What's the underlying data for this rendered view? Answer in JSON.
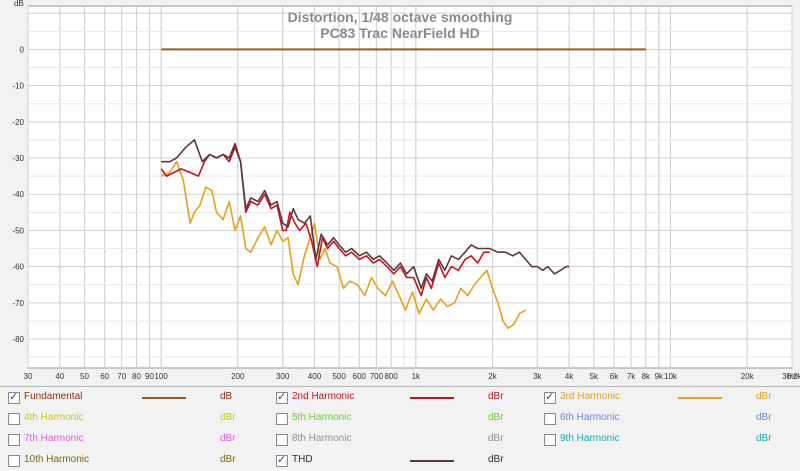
{
  "chart_data": {
    "type": "line",
    "title": "Distortion, 1/48 octave smoothing",
    "subtitle": "PC83 Trac NearField HD",
    "ylabel": "dB",
    "xunit_label": "Hz",
    "x_scale": "log",
    "xlim": [
      30,
      30000
    ],
    "ylim": [
      -88,
      12
    ],
    "grid": true,
    "y_ticks": [
      0,
      -10,
      -20,
      -30,
      -40,
      -50,
      -60,
      -70,
      -80
    ],
    "x_ticks": [
      {
        "v": 30,
        "label": "30"
      },
      {
        "v": 40,
        "label": "40"
      },
      {
        "v": 50,
        "label": "50"
      },
      {
        "v": 60,
        "label": "60"
      },
      {
        "v": 70,
        "label": "70"
      },
      {
        "v": 80,
        "label": "80"
      },
      {
        "v": 90,
        "label": "90"
      },
      {
        "v": 100,
        "label": "100"
      },
      {
        "v": 200,
        "label": "200"
      },
      {
        "v": 300,
        "label": "300"
      },
      {
        "v": 400,
        "label": "400"
      },
      {
        "v": 500,
        "label": "500"
      },
      {
        "v": 600,
        "label": "600"
      },
      {
        "v": 700,
        "label": "700"
      },
      {
        "v": 800,
        "label": "800"
      },
      {
        "v": 1000,
        "label": "1k"
      },
      {
        "v": 2000,
        "label": "2k"
      },
      {
        "v": 3000,
        "label": "3k"
      },
      {
        "v": 4000,
        "label": "4k"
      },
      {
        "v": 5000,
        "label": "5k"
      },
      {
        "v": 6000,
        "label": "6k"
      },
      {
        "v": 7000,
        "label": "7k"
      },
      {
        "v": 8000,
        "label": "8k"
      },
      {
        "v": 9000,
        "label": "9k"
      },
      {
        "v": 10000,
        "label": "10k"
      },
      {
        "v": 20000,
        "label": "20k"
      },
      {
        "v": 30000,
        "label": "30.0k"
      }
    ],
    "series": [
      {
        "name": "Fundamental",
        "color": "#9b5a1e",
        "points": [
          [
            100,
            0
          ],
          [
            8000,
            0
          ]
        ]
      },
      {
        "name": "2nd Harmonic",
        "color": "#c8141e",
        "points": [
          [
            100,
            -33
          ],
          [
            105,
            -35
          ],
          [
            112,
            -34
          ],
          [
            120,
            -33
          ],
          [
            130,
            -34
          ],
          [
            140,
            -35
          ],
          [
            148,
            -31
          ],
          [
            155,
            -29
          ],
          [
            165,
            -30
          ],
          [
            175,
            -29
          ],
          [
            185,
            -31
          ],
          [
            195,
            -27
          ],
          [
            205,
            -31
          ],
          [
            215,
            -45
          ],
          [
            225,
            -42
          ],
          [
            240,
            -43
          ],
          [
            255,
            -40
          ],
          [
            270,
            -44
          ],
          [
            285,
            -43
          ],
          [
            300,
            -50
          ],
          [
            310,
            -50
          ],
          [
            320,
            -45
          ],
          [
            335,
            -48
          ],
          [
            350,
            -50
          ],
          [
            370,
            -48
          ],
          [
            390,
            -53
          ],
          [
            410,
            -60
          ],
          [
            430,
            -52
          ],
          [
            450,
            -55
          ],
          [
            475,
            -53
          ],
          [
            500,
            -55
          ],
          [
            530,
            -57
          ],
          [
            560,
            -56
          ],
          [
            600,
            -58
          ],
          [
            640,
            -57
          ],
          [
            680,
            -59
          ],
          [
            720,
            -58
          ],
          [
            770,
            -60
          ],
          [
            820,
            -62
          ],
          [
            870,
            -60
          ],
          [
            920,
            -63
          ],
          [
            980,
            -63
          ],
          [
            1050,
            -68
          ],
          [
            1100,
            -63
          ],
          [
            1150,
            -66
          ],
          [
            1230,
            -59
          ],
          [
            1300,
            -63
          ],
          [
            1380,
            -60
          ],
          [
            1470,
            -61
          ],
          [
            1560,
            -58
          ],
          [
            1650,
            -57
          ],
          [
            1750,
            -59
          ],
          [
            1850,
            -56
          ],
          [
            1950,
            -56
          ]
        ]
      },
      {
        "name": "3rd Harmonic",
        "color": "#e8a020",
        "points": [
          [
            100,
            -35
          ],
          [
            108,
            -34
          ],
          [
            115,
            -31
          ],
          [
            122,
            -36
          ],
          [
            130,
            -48
          ],
          [
            135,
            -45
          ],
          [
            142,
            -43
          ],
          [
            150,
            -38
          ],
          [
            158,
            -39
          ],
          [
            165,
            -45
          ],
          [
            175,
            -47
          ],
          [
            185,
            -42
          ],
          [
            195,
            -50
          ],
          [
            205,
            -46
          ],
          [
            215,
            -55
          ],
          [
            225,
            -56
          ],
          [
            240,
            -52
          ],
          [
            255,
            -49
          ],
          [
            270,
            -54
          ],
          [
            285,
            -50
          ],
          [
            300,
            -53
          ],
          [
            315,
            -52
          ],
          [
            330,
            -62
          ],
          [
            345,
            -65
          ],
          [
            365,
            -57
          ],
          [
            385,
            -52
          ],
          [
            400,
            -48
          ],
          [
            420,
            -58
          ],
          [
            440,
            -55
          ],
          [
            460,
            -59
          ],
          [
            490,
            -60
          ],
          [
            520,
            -66
          ],
          [
            550,
            -64
          ],
          [
            590,
            -65
          ],
          [
            630,
            -68
          ],
          [
            670,
            -63
          ],
          [
            710,
            -66
          ],
          [
            760,
            -68
          ],
          [
            810,
            -64
          ],
          [
            860,
            -68
          ],
          [
            910,
            -72
          ],
          [
            970,
            -67
          ],
          [
            1030,
            -73
          ],
          [
            1100,
            -69
          ],
          [
            1170,
            -72
          ],
          [
            1250,
            -69
          ],
          [
            1330,
            -71
          ],
          [
            1420,
            -70
          ],
          [
            1500,
            -66
          ],
          [
            1600,
            -68
          ],
          [
            1700,
            -65
          ],
          [
            1800,
            -63
          ],
          [
            1900,
            -61
          ],
          [
            2000,
            -66
          ],
          [
            2100,
            -70
          ],
          [
            2200,
            -75
          ],
          [
            2300,
            -77
          ],
          [
            2420,
            -76
          ],
          [
            2550,
            -73
          ],
          [
            2700,
            -72
          ]
        ]
      },
      {
        "name": "THD",
        "color": "#5a3a3a",
        "points": [
          [
            100,
            -31
          ],
          [
            108,
            -31
          ],
          [
            115,
            -30
          ],
          [
            125,
            -27
          ],
          [
            135,
            -25
          ],
          [
            145,
            -31
          ],
          [
            155,
            -29
          ],
          [
            165,
            -30
          ],
          [
            175,
            -29
          ],
          [
            185,
            -30
          ],
          [
            195,
            -26
          ],
          [
            205,
            -31
          ],
          [
            215,
            -44
          ],
          [
            225,
            -41
          ],
          [
            240,
            -42
          ],
          [
            255,
            -39
          ],
          [
            270,
            -43
          ],
          [
            285,
            -42
          ],
          [
            300,
            -48
          ],
          [
            315,
            -49
          ],
          [
            330,
            -44
          ],
          [
            345,
            -47
          ],
          [
            365,
            -48
          ],
          [
            385,
            -46
          ],
          [
            405,
            -58
          ],
          [
            425,
            -51
          ],
          [
            450,
            -54
          ],
          [
            475,
            -52
          ],
          [
            500,
            -54
          ],
          [
            530,
            -56
          ],
          [
            560,
            -55
          ],
          [
            600,
            -57
          ],
          [
            640,
            -56
          ],
          [
            680,
            -58
          ],
          [
            720,
            -57
          ],
          [
            770,
            -59
          ],
          [
            820,
            -61
          ],
          [
            870,
            -59
          ],
          [
            920,
            -62
          ],
          [
            980,
            -60
          ],
          [
            1050,
            -66
          ],
          [
            1100,
            -62
          ],
          [
            1160,
            -64
          ],
          [
            1230,
            -58
          ],
          [
            1300,
            -61
          ],
          [
            1380,
            -57
          ],
          [
            1470,
            -58
          ],
          [
            1560,
            -56
          ],
          [
            1650,
            -54
          ],
          [
            1750,
            -55
          ],
          [
            1850,
            -55
          ],
          [
            1950,
            -55
          ],
          [
            2100,
            -56
          ],
          [
            2250,
            -56
          ],
          [
            2400,
            -57
          ],
          [
            2550,
            -56
          ],
          [
            2700,
            -58
          ],
          [
            2850,
            -60
          ],
          [
            3000,
            -60
          ],
          [
            3150,
            -61
          ],
          [
            3300,
            -60
          ],
          [
            3500,
            -62
          ],
          [
            3700,
            -61
          ],
          [
            3900,
            -60
          ],
          [
            4000,
            -60
          ]
        ]
      }
    ]
  },
  "legend": {
    "items": [
      {
        "label": "Fundamental",
        "unit": "dB",
        "checked": true,
        "color": "#9b5a1e",
        "label_color": "#9b2a10",
        "show_line": true
      },
      {
        "label": "2nd Harmonic",
        "unit": "dBr",
        "checked": true,
        "color": "#c8141e",
        "label_color": "#c8141e",
        "show_line": true
      },
      {
        "label": "3rd Harmonic",
        "unit": "dBr",
        "checked": true,
        "color": "#e8a020",
        "label_color": "#e8a020",
        "show_line": true
      },
      {
        "label": "4th Harmonic",
        "unit": "dBr",
        "checked": false,
        "color": "#c8c820",
        "label_color": "#c8c820",
        "show_line": false
      },
      {
        "label": "5th Harmonic",
        "unit": "dBr",
        "checked": false,
        "color": "#70c840",
        "label_color": "#70c840",
        "show_line": false
      },
      {
        "label": "6th Harmonic",
        "unit": "dBr",
        "checked": false,
        "color": "#6a8ad8",
        "label_color": "#6a8ad8",
        "show_line": false
      },
      {
        "label": "7th Harmonic",
        "unit": "dBr",
        "checked": false,
        "color": "#e060e0",
        "label_color": "#e060e0",
        "show_line": false
      },
      {
        "label": "8th Harmonic",
        "unit": "dBr",
        "checked": false,
        "color": "#909090",
        "label_color": "#909090",
        "show_line": false
      },
      {
        "label": "9th Harmonic",
        "unit": "dBr",
        "checked": false,
        "color": "#20c0c0",
        "label_color": "#20a8a8",
        "show_line": false
      },
      {
        "label": "10th Harmonic",
        "unit": "dBr",
        "checked": false,
        "color": "#8a7a10",
        "label_color": "#7a6a10",
        "show_line": false
      },
      {
        "label": "THD",
        "unit": "dBr",
        "checked": true,
        "color": "#5a3a3a",
        "label_color": "#303030",
        "show_line": true
      }
    ]
  }
}
